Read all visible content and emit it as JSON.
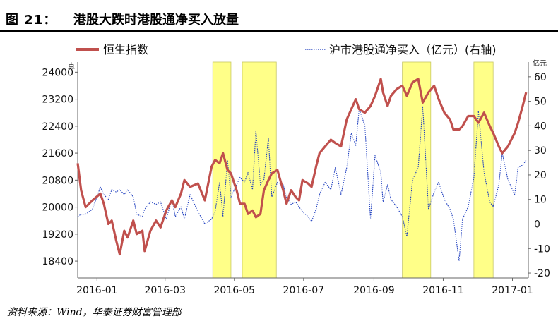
{
  "header": {
    "figure_label": "图 21：",
    "title": "港股大跌时港股通净买入放量"
  },
  "footer": {
    "source": "资料来源：Wind，华泰证券财富管理部"
  },
  "chart_data": {
    "type": "line",
    "unit_left": "点",
    "unit_right": "亿元",
    "x_ticks": [
      "2016-01",
      "2016-03",
      "2016-05",
      "2016-07",
      "2016-09",
      "2016-11",
      "2017-01"
    ],
    "x_range": [
      "2015-12-15",
      "2017-01-15"
    ],
    "y_left": {
      "ticks": [
        18400,
        19200,
        20000,
        20800,
        21600,
        22400,
        23200,
        24000
      ],
      "range": [
        17900,
        24300
      ]
    },
    "y_right": {
      "ticks": [
        -20,
        -10,
        0,
        10,
        20,
        30,
        40,
        50,
        60
      ],
      "range": [
        -22,
        66
      ]
    },
    "highlight_periods": [
      {
        "start": "2016-04-12",
        "end": "2016-04-28"
      },
      {
        "start": "2016-05-08",
        "end": "2016-06-07"
      },
      {
        "start": "2016-09-26",
        "end": "2016-10-21"
      },
      {
        "start": "2016-11-28",
        "end": "2016-12-15"
      }
    ],
    "series": [
      {
        "name": "恒生指数",
        "axis": "left",
        "color": "#c0504d",
        "style": "solid",
        "points": [
          [
            "2015-12-15",
            21300
          ],
          [
            "2015-12-18",
            20500
          ],
          [
            "2015-12-22",
            20000
          ],
          [
            "2015-12-28",
            20200
          ],
          [
            "2016-01-04",
            20400
          ],
          [
            "2016-01-07",
            20100
          ],
          [
            "2016-01-11",
            19500
          ],
          [
            "2016-01-14",
            19600
          ],
          [
            "2016-01-18",
            19000
          ],
          [
            "2016-01-21",
            18600
          ],
          [
            "2016-01-25",
            19300
          ],
          [
            "2016-01-28",
            19100
          ],
          [
            "2016-02-02",
            19600
          ],
          [
            "2016-02-05",
            19200
          ],
          [
            "2016-02-10",
            19300
          ],
          [
            "2016-02-12",
            18700
          ],
          [
            "2016-02-17",
            19300
          ],
          [
            "2016-02-22",
            19600
          ],
          [
            "2016-02-26",
            19400
          ],
          [
            "2016-03-02",
            19900
          ],
          [
            "2016-03-07",
            20200
          ],
          [
            "2016-03-10",
            20000
          ],
          [
            "2016-03-15",
            20400
          ],
          [
            "2016-03-18",
            20800
          ],
          [
            "2016-03-23",
            20600
          ],
          [
            "2016-03-30",
            20700
          ],
          [
            "2016-04-05",
            20200
          ],
          [
            "2016-04-11",
            21200
          ],
          [
            "2016-04-14",
            21400
          ],
          [
            "2016-04-18",
            21300
          ],
          [
            "2016-04-21",
            21600
          ],
          [
            "2016-04-25",
            21100
          ],
          [
            "2016-04-28",
            21000
          ],
          [
            "2016-05-03",
            20500
          ],
          [
            "2016-05-06",
            20100
          ],
          [
            "2016-05-10",
            20100
          ],
          [
            "2016-05-13",
            19800
          ],
          [
            "2016-05-17",
            19900
          ],
          [
            "2016-05-20",
            19700
          ],
          [
            "2016-05-24",
            19800
          ],
          [
            "2016-05-27",
            20500
          ],
          [
            "2016-05-31",
            20800
          ],
          [
            "2016-06-03",
            21000
          ],
          [
            "2016-06-08",
            21100
          ],
          [
            "2016-06-13",
            20500
          ],
          [
            "2016-06-16",
            20100
          ],
          [
            "2016-06-20",
            20500
          ],
          [
            "2016-06-24",
            20300
          ],
          [
            "2016-06-27",
            20200
          ],
          [
            "2016-06-30",
            20800
          ],
          [
            "2016-07-05",
            20700
          ],
          [
            "2016-07-08",
            20600
          ],
          [
            "2016-07-12",
            21200
          ],
          [
            "2016-07-15",
            21600
          ],
          [
            "2016-07-20",
            21800
          ],
          [
            "2016-07-25",
            22000
          ],
          [
            "2016-07-29",
            21900
          ],
          [
            "2016-08-03",
            21800
          ],
          [
            "2016-08-08",
            22600
          ],
          [
            "2016-08-12",
            22900
          ],
          [
            "2016-08-16",
            23200
          ],
          [
            "2016-08-19",
            22900
          ],
          [
            "2016-08-24",
            22800
          ],
          [
            "2016-08-29",
            23000
          ],
          [
            "2016-09-02",
            23300
          ],
          [
            "2016-09-07",
            23800
          ],
          [
            "2016-09-09",
            23400
          ],
          [
            "2016-09-13",
            23000
          ],
          [
            "2016-09-16",
            23300
          ],
          [
            "2016-09-21",
            23500
          ],
          [
            "2016-09-26",
            23600
          ],
          [
            "2016-09-30",
            23300
          ],
          [
            "2016-10-05",
            23700
          ],
          [
            "2016-10-10",
            23800
          ],
          [
            "2016-10-14",
            23100
          ],
          [
            "2016-10-19",
            23400
          ],
          [
            "2016-10-24",
            23600
          ],
          [
            "2016-10-28",
            23200
          ],
          [
            "2016-11-02",
            22800
          ],
          [
            "2016-11-07",
            22600
          ],
          [
            "2016-11-10",
            22300
          ],
          [
            "2016-11-15",
            22300
          ],
          [
            "2016-11-18",
            22400
          ],
          [
            "2016-11-23",
            22700
          ],
          [
            "2016-11-28",
            22700
          ],
          [
            "2016-12-02",
            22500
          ],
          [
            "2016-12-07",
            22800
          ],
          [
            "2016-12-12",
            22400
          ],
          [
            "2016-12-15",
            22200
          ],
          [
            "2016-12-20",
            21800
          ],
          [
            "2016-12-23",
            21600
          ],
          [
            "2016-12-28",
            21800
          ],
          [
            "2017-01-03",
            22200
          ],
          [
            "2017-01-06",
            22500
          ],
          [
            "2017-01-10",
            23000
          ],
          [
            "2017-01-13",
            23400
          ]
        ]
      },
      {
        "name": "沪市港股通净买入（亿元）(右轴)",
        "axis": "right",
        "color": "#1f3fbf",
        "style": "dotted",
        "points": [
          [
            "2015-12-15",
            3
          ],
          [
            "2015-12-18",
            4
          ],
          [
            "2015-12-22",
            4
          ],
          [
            "2015-12-28",
            6
          ],
          [
            "2016-01-04",
            15
          ],
          [
            "2016-01-07",
            12
          ],
          [
            "2016-01-11",
            10
          ],
          [
            "2016-01-14",
            14
          ],
          [
            "2016-01-18",
            13
          ],
          [
            "2016-01-21",
            14
          ],
          [
            "2016-01-25",
            12
          ],
          [
            "2016-01-28",
            14
          ],
          [
            "2016-02-02",
            11
          ],
          [
            "2016-02-05",
            4
          ],
          [
            "2016-02-10",
            3
          ],
          [
            "2016-02-12",
            6
          ],
          [
            "2016-02-17",
            9
          ],
          [
            "2016-02-22",
            8
          ],
          [
            "2016-02-26",
            9
          ],
          [
            "2016-03-02",
            2
          ],
          [
            "2016-03-07",
            10
          ],
          [
            "2016-03-10",
            3
          ],
          [
            "2016-03-15",
            7
          ],
          [
            "2016-03-18",
            2
          ],
          [
            "2016-03-23",
            12
          ],
          [
            "2016-03-30",
            5
          ],
          [
            "2016-04-05",
            0
          ],
          [
            "2016-04-11",
            2
          ],
          [
            "2016-04-14",
            5
          ],
          [
            "2016-04-18",
            17
          ],
          [
            "2016-04-21",
            3
          ],
          [
            "2016-04-25",
            26
          ],
          [
            "2016-04-28",
            11
          ],
          [
            "2016-05-03",
            16
          ],
          [
            "2016-05-06",
            19
          ],
          [
            "2016-05-10",
            17
          ],
          [
            "2016-05-13",
            21
          ],
          [
            "2016-05-17",
            14
          ],
          [
            "2016-05-20",
            38
          ],
          [
            "2016-05-24",
            16
          ],
          [
            "2016-05-27",
            18
          ],
          [
            "2016-05-31",
            35
          ],
          [
            "2016-06-03",
            11
          ],
          [
            "2016-06-08",
            17
          ],
          [
            "2016-06-13",
            16
          ],
          [
            "2016-06-16",
            11
          ],
          [
            "2016-06-20",
            8
          ],
          [
            "2016-06-24",
            9
          ],
          [
            "2016-06-27",
            7
          ],
          [
            "2016-06-30",
            5
          ],
          [
            "2016-07-05",
            3
          ],
          [
            "2016-07-08",
            1
          ],
          [
            "2016-07-12",
            6
          ],
          [
            "2016-07-15",
            12
          ],
          [
            "2016-07-20",
            17
          ],
          [
            "2016-07-25",
            14
          ],
          [
            "2016-07-29",
            23
          ],
          [
            "2016-08-03",
            12
          ],
          [
            "2016-08-08",
            23
          ],
          [
            "2016-08-12",
            37
          ],
          [
            "2016-08-16",
            32
          ],
          [
            "2016-08-19",
            47
          ],
          [
            "2016-08-24",
            40
          ],
          [
            "2016-08-29",
            2
          ],
          [
            "2016-09-02",
            28
          ],
          [
            "2016-09-07",
            21
          ],
          [
            "2016-09-09",
            9
          ],
          [
            "2016-09-13",
            16
          ],
          [
            "2016-09-16",
            10
          ],
          [
            "2016-09-21",
            7
          ],
          [
            "2016-09-26",
            3
          ],
          [
            "2016-09-30",
            -5
          ],
          [
            "2016-10-05",
            18
          ],
          [
            "2016-10-10",
            23
          ],
          [
            "2016-10-14",
            48
          ],
          [
            "2016-10-19",
            6
          ],
          [
            "2016-10-24",
            13
          ],
          [
            "2016-10-28",
            17
          ],
          [
            "2016-11-02",
            10
          ],
          [
            "2016-11-07",
            6
          ],
          [
            "2016-11-10",
            2
          ],
          [
            "2016-11-15",
            -15
          ],
          [
            "2016-11-18",
            2
          ],
          [
            "2016-11-23",
            7
          ],
          [
            "2016-11-28",
            19
          ],
          [
            "2016-12-02",
            46
          ],
          [
            "2016-12-07",
            21
          ],
          [
            "2016-12-12",
            9
          ],
          [
            "2016-12-15",
            7
          ],
          [
            "2016-12-20",
            16
          ],
          [
            "2016-12-23",
            29
          ],
          [
            "2016-12-28",
            18
          ],
          [
            "2017-01-03",
            12
          ],
          [
            "2017-01-06",
            23
          ],
          [
            "2017-01-10",
            24
          ],
          [
            "2017-01-13",
            26
          ]
        ]
      }
    ]
  }
}
